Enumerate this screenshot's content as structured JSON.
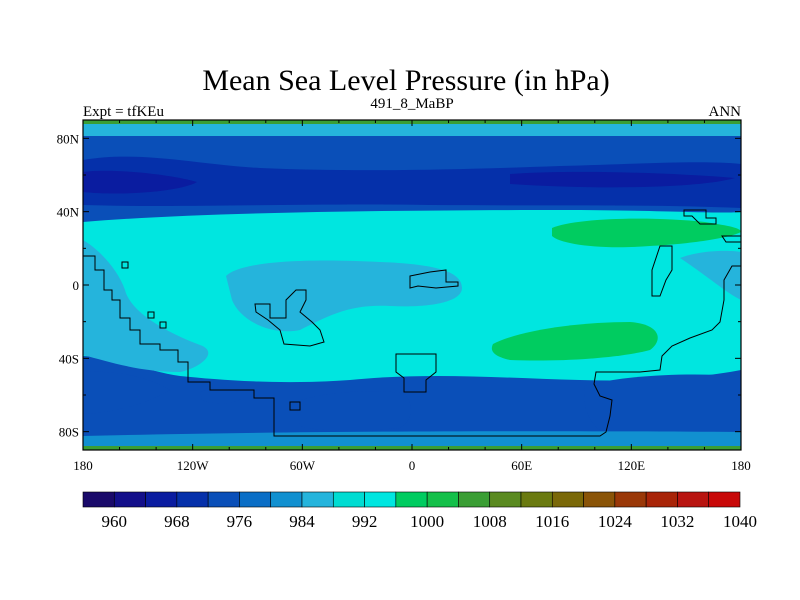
{
  "title": "Mean Sea Level Pressure (in hPa)",
  "left_label": "Expt = tfKEu",
  "center_label": "491_8_MaBP",
  "right_label": "ANN",
  "lat_ticks": [
    "80N",
    "40N",
    "0",
    "40S",
    "80S"
  ],
  "lon_ticks": [
    "180",
    "120W",
    "60W",
    "0",
    "60E",
    "120E",
    "180"
  ],
  "colorbar": {
    "labels": [
      "960",
      "968",
      "976",
      "984",
      "992",
      "1000",
      "1008",
      "1016",
      "1024",
      "1032",
      "1040"
    ],
    "colors": [
      "#1a0a6a",
      "#130f8a",
      "#0a1ca0",
      "#0530aa",
      "#0a4fb8",
      "#0a6ec6",
      "#1190d0",
      "#25b4dc",
      "#00dcd2",
      "#00e6e0",
      "#00cc60",
      "#14c04a",
      "#3a9e34",
      "#5a8a20",
      "#6a7a10",
      "#7a6808",
      "#8a5408",
      "#9a3808",
      "#a82408",
      "#b81410",
      "#c80808"
    ]
  },
  "field_colors": {
    "c984": "#0a4fb8",
    "c976": "#0530aa",
    "c968": "#0a1ca0",
    "c992": "#1190d0",
    "c996": "#25b4dc",
    "c1000": "#00e6e0",
    "c1008": "#00cc60",
    "c1012": "#3a9e34"
  }
}
